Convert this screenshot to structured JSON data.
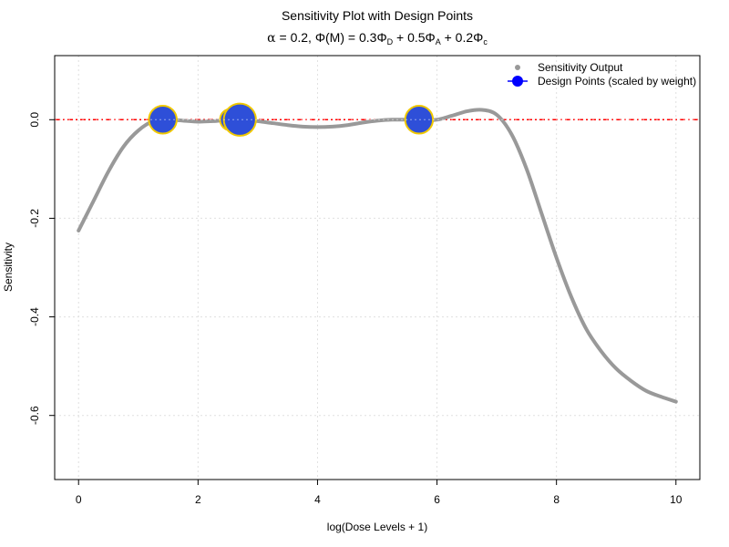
{
  "chart_data": {
    "type": "line",
    "title": "Sensitivity Plot with Design Points",
    "subtitle": {
      "alpha_symbol": "α",
      "alpha_eq": " = 0.2, ",
      "phi_symbol": "Φ",
      "phi_arg": "(M)",
      "eq": " = 0.3",
      "term1_symbol": "Φ",
      "term1_sub": "D",
      "plus1": " + 0.5",
      "term2_symbol": "Φ",
      "term2_sub": "A",
      "plus2": " + 0.2",
      "term3_symbol": "Φ",
      "term3_sub": "c"
    },
    "xlabel": "log(Dose Levels + 1)",
    "ylabel": "Sensitivity",
    "xlim": [
      -0.4,
      10.4
    ],
    "ylim": [
      -0.73,
      0.13
    ],
    "x_ticks": [
      0,
      2,
      4,
      6,
      8,
      10
    ],
    "x_tick_labels": [
      "0",
      "2",
      "4",
      "6",
      "8",
      "10"
    ],
    "y_ticks": [
      0.0,
      -0.2,
      -0.4,
      -0.6
    ],
    "y_tick_labels": [
      "0.0",
      "-0.2",
      "-0.4",
      "-0.6"
    ],
    "grid": true,
    "reference_line": {
      "y": 0,
      "color": "#ff0000",
      "style": "dashdot"
    },
    "legend": {
      "position": "top-right",
      "entries": [
        {
          "label": "Sensitivity Output",
          "marker": "dot",
          "color": "#999999"
        },
        {
          "label": "Design Points (scaled by weight)",
          "marker": "circle-line",
          "color": "#0000ff"
        }
      ]
    },
    "series": [
      {
        "name": "Sensitivity Output",
        "color": "#999999",
        "x": [
          0,
          0.25,
          0.5,
          0.75,
          1.0,
          1.25,
          1.5,
          1.75,
          2.0,
          2.25,
          2.5,
          2.75,
          3.0,
          3.25,
          3.5,
          3.75,
          4.0,
          4.25,
          4.5,
          4.75,
          5.0,
          5.25,
          5.5,
          5.75,
          6.0,
          6.25,
          6.5,
          6.75,
          7.0,
          7.25,
          7.5,
          7.75,
          8.0,
          8.25,
          8.5,
          8.75,
          9.0,
          9.25,
          9.5,
          9.75,
          10.0
        ],
        "y": [
          -0.225,
          -0.165,
          -0.105,
          -0.055,
          -0.022,
          -0.003,
          0.0,
          -0.002,
          -0.004,
          -0.003,
          -0.001,
          0.0,
          -0.003,
          -0.007,
          -0.011,
          -0.014,
          -0.015,
          -0.014,
          -0.011,
          -0.006,
          -0.002,
          0.0,
          0.0,
          -0.001,
          0.0,
          0.008,
          0.017,
          0.02,
          0.01,
          -0.03,
          -0.1,
          -0.19,
          -0.28,
          -0.36,
          -0.425,
          -0.47,
          -0.505,
          -0.53,
          -0.55,
          -0.562,
          -0.572
        ]
      }
    ],
    "design_points": {
      "name": "Design Points (scaled by weight)",
      "fill": "#2e4fd8",
      "stroke": "#f0c800",
      "points": [
        {
          "x": 1.41,
          "y": 0.0,
          "weight": 0.26
        },
        {
          "x": 2.55,
          "y": 0.0,
          "weight": 0.12
        },
        {
          "x": 2.7,
          "y": 0.0,
          "weight": 0.36
        },
        {
          "x": 5.7,
          "y": 0.0,
          "weight": 0.26
        }
      ]
    }
  }
}
